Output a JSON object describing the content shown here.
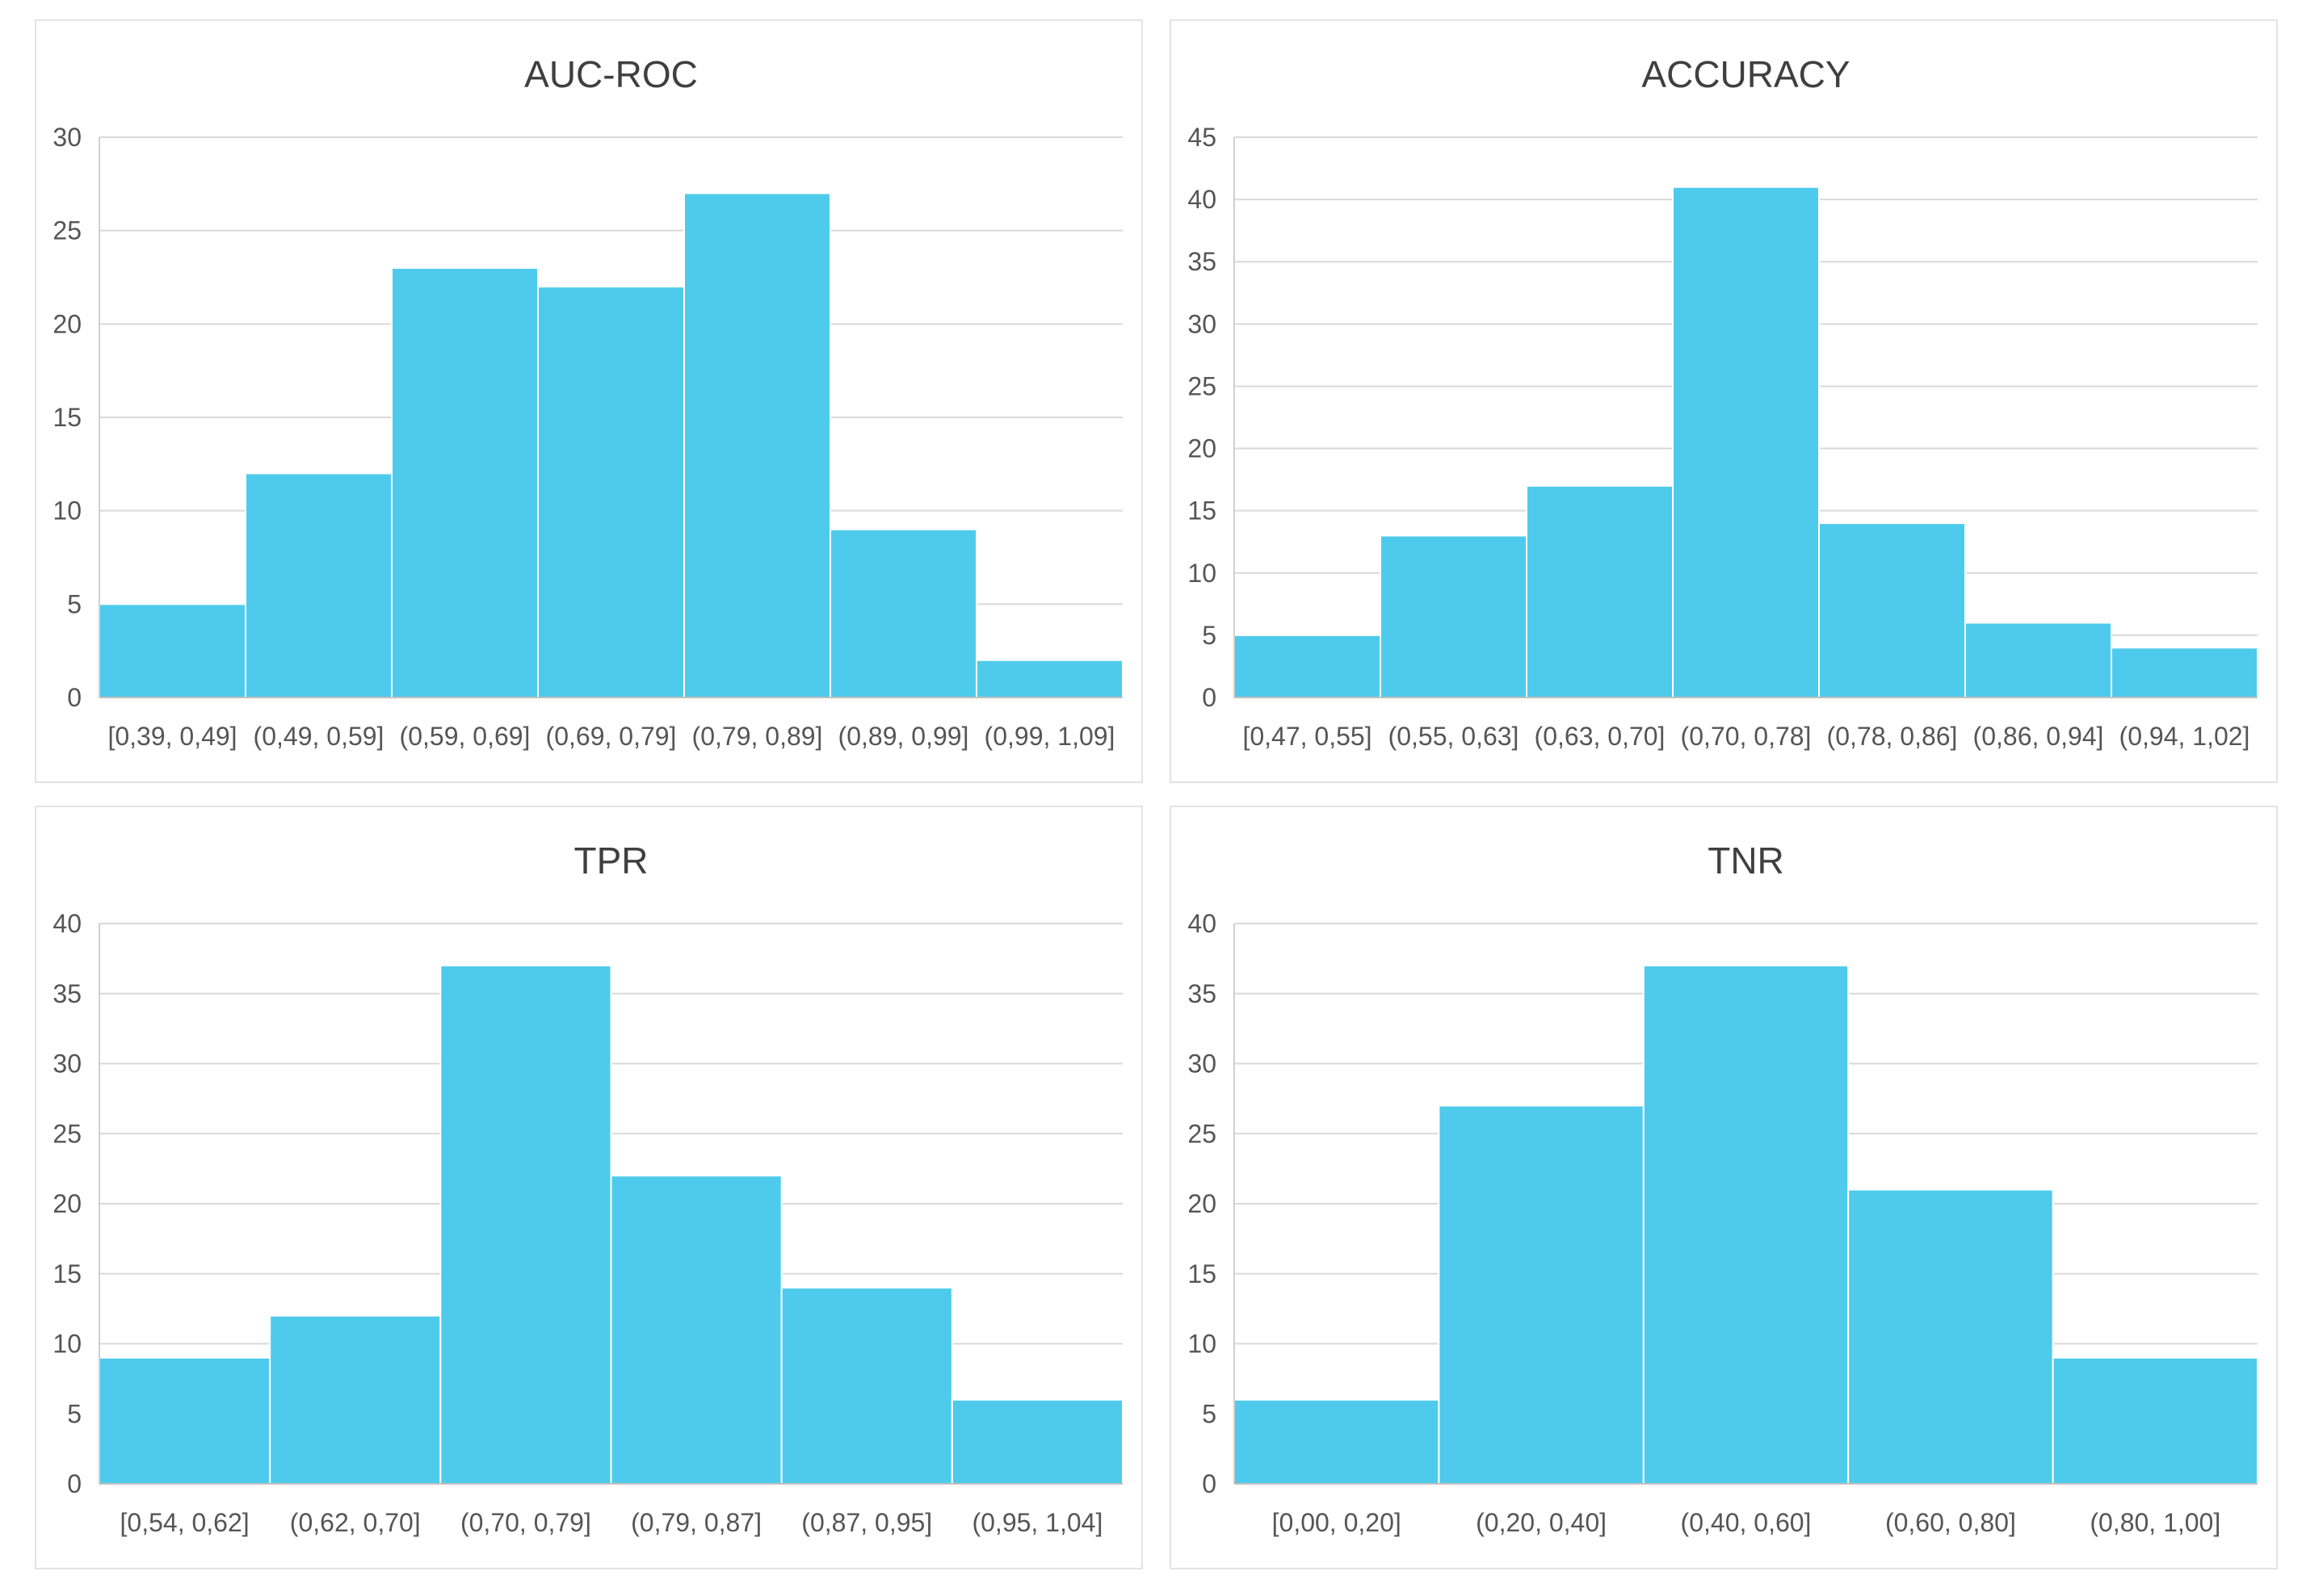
{
  "chart_data": [
    {
      "type": "bar",
      "title": "AUC-ROC",
      "categories": [
        "[0,39, 0,49]",
        "(0,49, 0,59]",
        "(0,59, 0,69]",
        "(0,69, 0,79]",
        "(0,79, 0,89]",
        "(0,89, 0,99]",
        "(0,99, 1,09]"
      ],
      "values": [
        5,
        12,
        23,
        22,
        27,
        9,
        2
      ],
      "ylim": [
        0,
        30
      ],
      "yticks": [
        0,
        5,
        10,
        15,
        20,
        25,
        30
      ],
      "xlabel": "",
      "ylabel": "",
      "grid": true,
      "color": "#4ECBEC"
    },
    {
      "type": "bar",
      "title": "ACCURACY",
      "categories": [
        "[0,47, 0,55]",
        "(0,55, 0,63]",
        "(0,63, 0,70]",
        "(0,70, 0,78]",
        "(0,78, 0,86]",
        "(0,86, 0,94]",
        "(0,94, 1,02]"
      ],
      "values": [
        5,
        13,
        17,
        41,
        14,
        6,
        4
      ],
      "ylim": [
        0,
        45
      ],
      "yticks": [
        0,
        5,
        10,
        15,
        20,
        25,
        30,
        35,
        40,
        45
      ],
      "xlabel": "",
      "ylabel": "",
      "grid": true,
      "color": "#4ECBEC"
    },
    {
      "type": "bar",
      "title": "TPR",
      "categories": [
        "[0,54, 0,62]",
        "(0,62, 0,70]",
        "(0,70, 0,79]",
        "(0,79, 0,87]",
        "(0,87, 0,95]",
        "(0,95, 1,04]"
      ],
      "values": [
        9,
        12,
        37,
        22,
        14,
        6
      ],
      "ylim": [
        0,
        40
      ],
      "yticks": [
        0,
        5,
        10,
        15,
        20,
        25,
        30,
        35,
        40
      ],
      "xlabel": "",
      "ylabel": "",
      "grid": true,
      "color": "#4ECBEC"
    },
    {
      "type": "bar",
      "title": "TNR",
      "categories": [
        "[0,00, 0,20]",
        "(0,20, 0,40]",
        "(0,40, 0,60]",
        "(0,60, 0,80]",
        "(0,80, 1,00]"
      ],
      "values": [
        6,
        27,
        37,
        21,
        9
      ],
      "ylim": [
        0,
        40
      ],
      "yticks": [
        0,
        5,
        10,
        15,
        20,
        25,
        30,
        35,
        40
      ],
      "xlabel": "",
      "ylabel": "",
      "grid": true,
      "color": "#4ECBEC"
    }
  ]
}
